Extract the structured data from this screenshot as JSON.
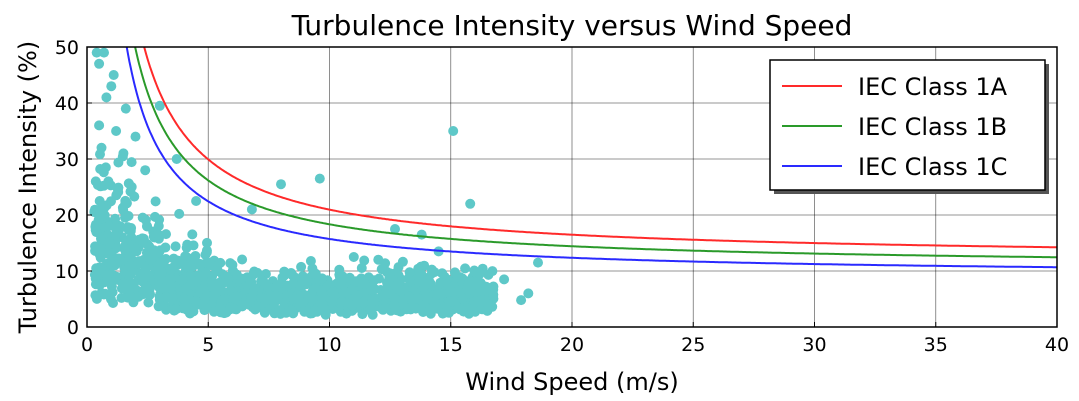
{
  "chart_data": {
    "type": "scatter",
    "title": "Turbulence Intensity versus Wind Speed",
    "xlabel": "Wind Speed (m/s)",
    "ylabel": "Turbulence Intensity (%)",
    "xlim": [
      0,
      40
    ],
    "ylim": [
      0,
      50
    ],
    "xticks": [
      "0",
      "5",
      "10",
      "15",
      "20",
      "25",
      "30",
      "35",
      "40"
    ],
    "yticks": [
      "0",
      "10",
      "20",
      "30",
      "40",
      "50"
    ],
    "grid": true,
    "legend_position": "top-right",
    "scatter_color": "#5ec8c8",
    "curves": [
      {
        "name": "IEC Class 1A",
        "color": "#ff2a2a",
        "Iref": 0.16
      },
      {
        "name": "IEC Class 1B",
        "color": "#2a9a2a",
        "Iref": 0.14
      },
      {
        "name": "IEC Class 1C",
        "color": "#2a2aff",
        "Iref": 0.12
      }
    ],
    "highlight_points": [
      [
        0.4,
        49
      ],
      [
        0.7,
        49
      ],
      [
        0.5,
        47
      ],
      [
        1.1,
        45
      ],
      [
        1.0,
        43
      ],
      [
        0.8,
        41
      ],
      [
        1.6,
        39
      ],
      [
        3.0,
        39.5
      ],
      [
        0.5,
        36
      ],
      [
        1.2,
        35
      ],
      [
        2.0,
        34
      ],
      [
        0.6,
        32
      ],
      [
        1.5,
        31
      ],
      [
        3.7,
        30
      ],
      [
        9.6,
        26.5
      ],
      [
        8.0,
        25.5
      ],
      [
        15.1,
        35
      ],
      [
        15.8,
        22
      ],
      [
        13.8,
        16.5
      ],
      [
        12.7,
        17.5
      ],
      [
        18.6,
        11.5
      ],
      [
        16.2,
        9.5
      ],
      [
        17.2,
        8.5
      ],
      [
        18.2,
        6
      ],
      [
        17.9,
        4.8
      ],
      [
        6.8,
        21
      ],
      [
        4.5,
        22.5
      ],
      [
        11.0,
        12.5
      ],
      [
        14.5,
        13.5
      ],
      [
        2.4,
        28
      ]
    ]
  }
}
